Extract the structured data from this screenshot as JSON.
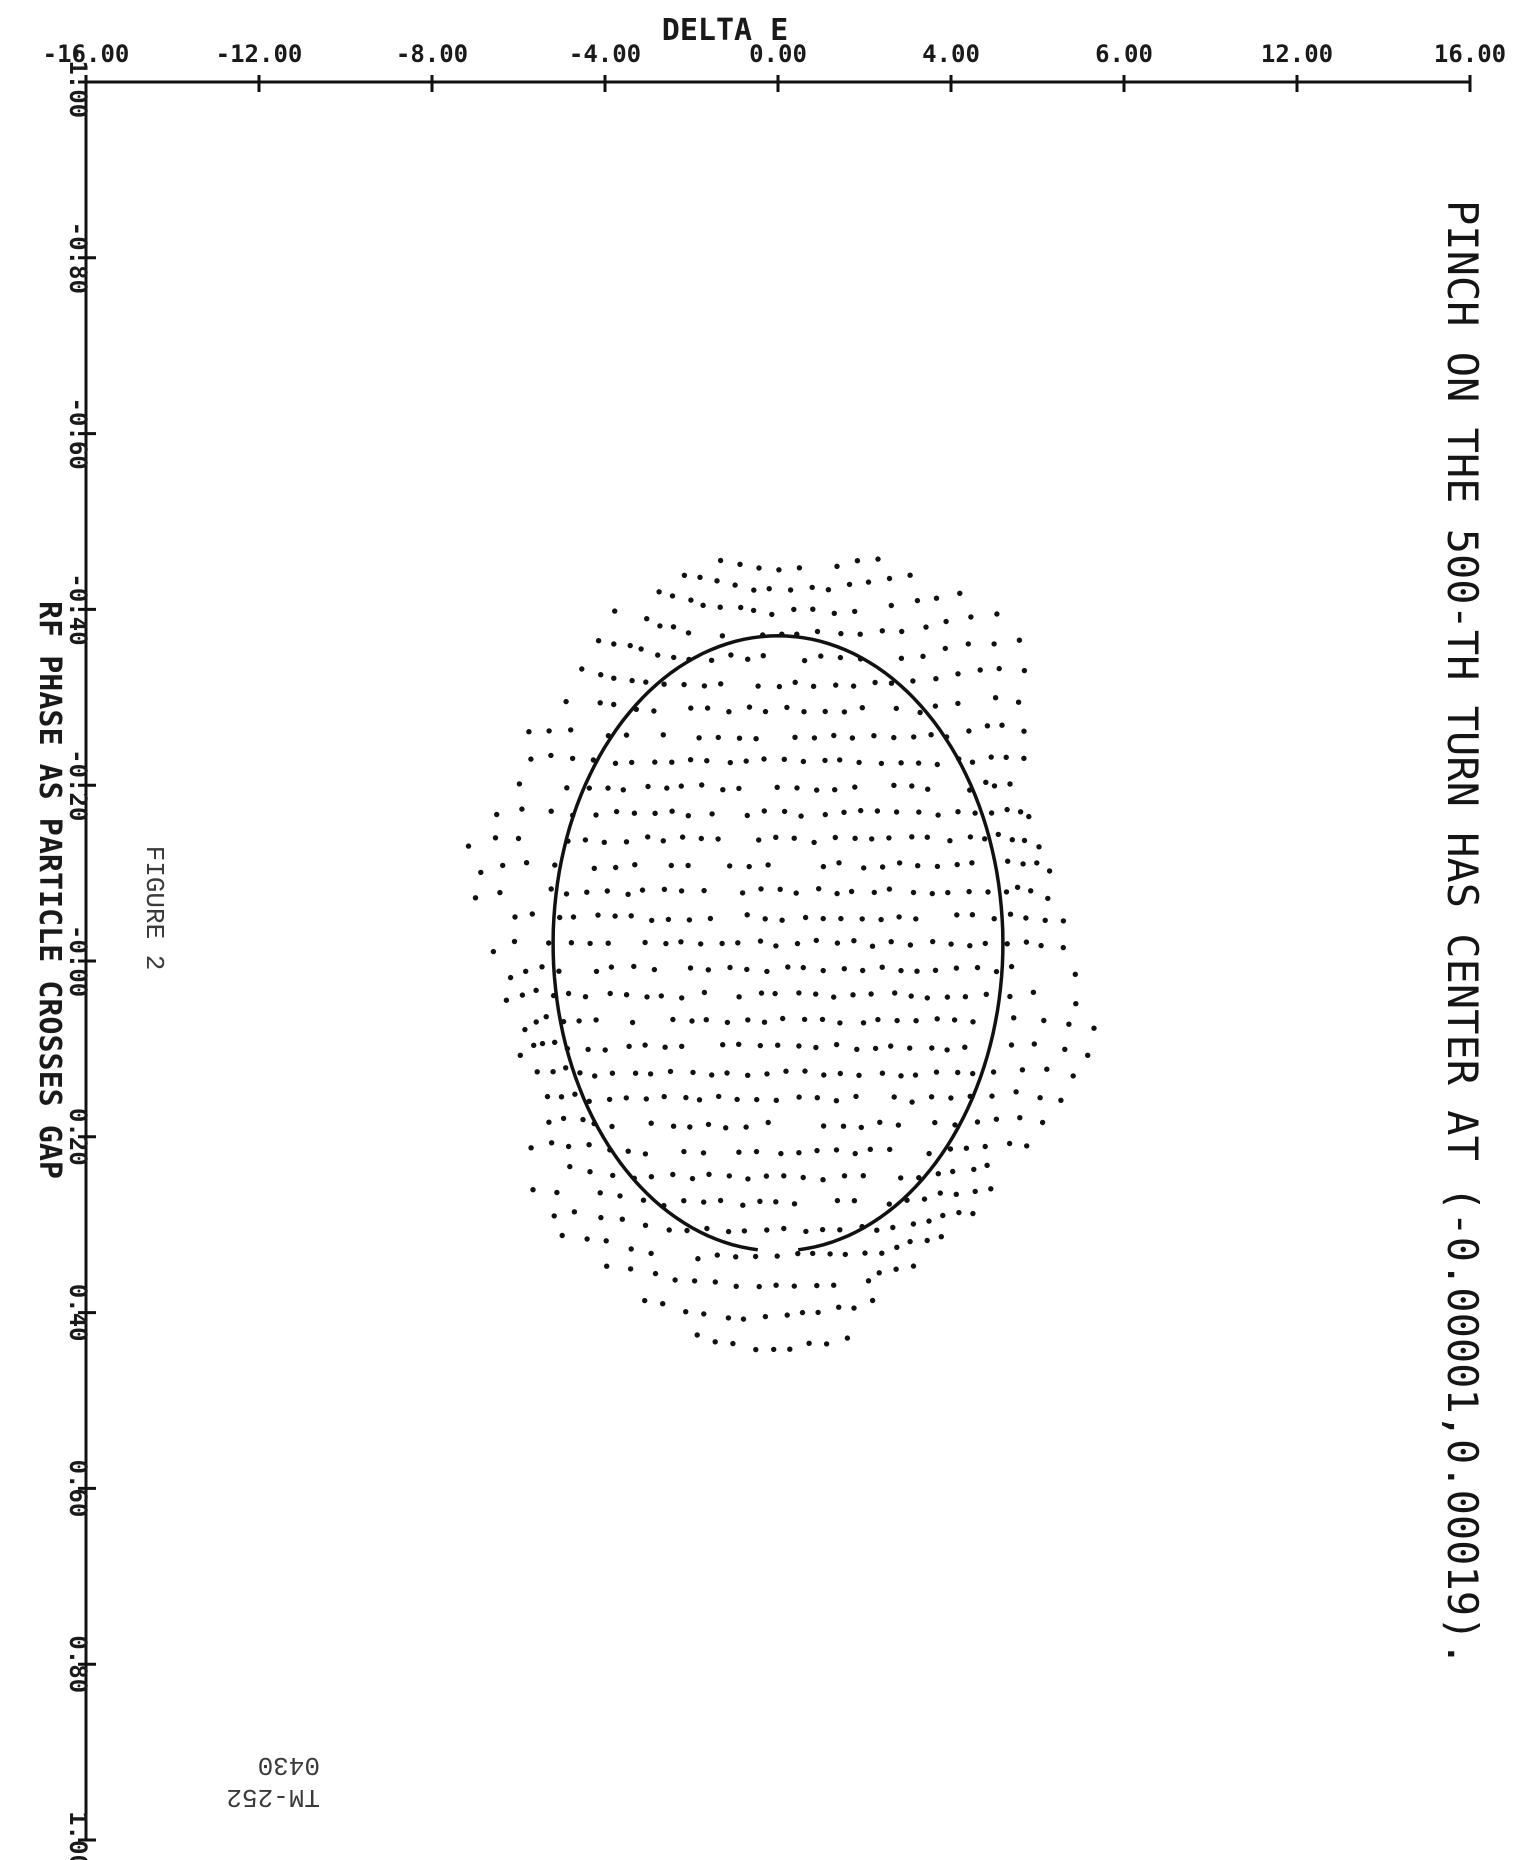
{
  "chart_data": {
    "type": "scatter",
    "title": "PINCH ON THE 500-TH TURN HAS CENTER AT (-0.00001,0.00019).",
    "xlabel": "DELTA E",
    "ylabel": "RF PHASE AS PARTICLE CROSSES GAP",
    "x_ticks": [
      "-16.00",
      "-12.00",
      "-8.00",
      "-4.00",
      "0.00",
      "4.00",
      "6.00",
      "12.00",
      "16.00"
    ],
    "y_ticks": [
      "-1.00",
      "-0.80",
      "-0.60",
      "-0.40",
      "-0.20",
      "-0.00",
      "0.20",
      "0.40",
      "0.60",
      "0.80",
      "1.00"
    ],
    "xlim": [
      -16,
      16
    ],
    "ylim": [
      -1,
      1
    ],
    "separatrix": {
      "center": [
        0,
        -0.02
      ],
      "half_width_delta_e": 5.2,
      "half_height_phase": 0.35
    },
    "grid": false,
    "legend": "none"
  },
  "figure_label": "FIGURE 2",
  "doc_ref": {
    "line1": "TM-252",
    "line2": "0430"
  }
}
